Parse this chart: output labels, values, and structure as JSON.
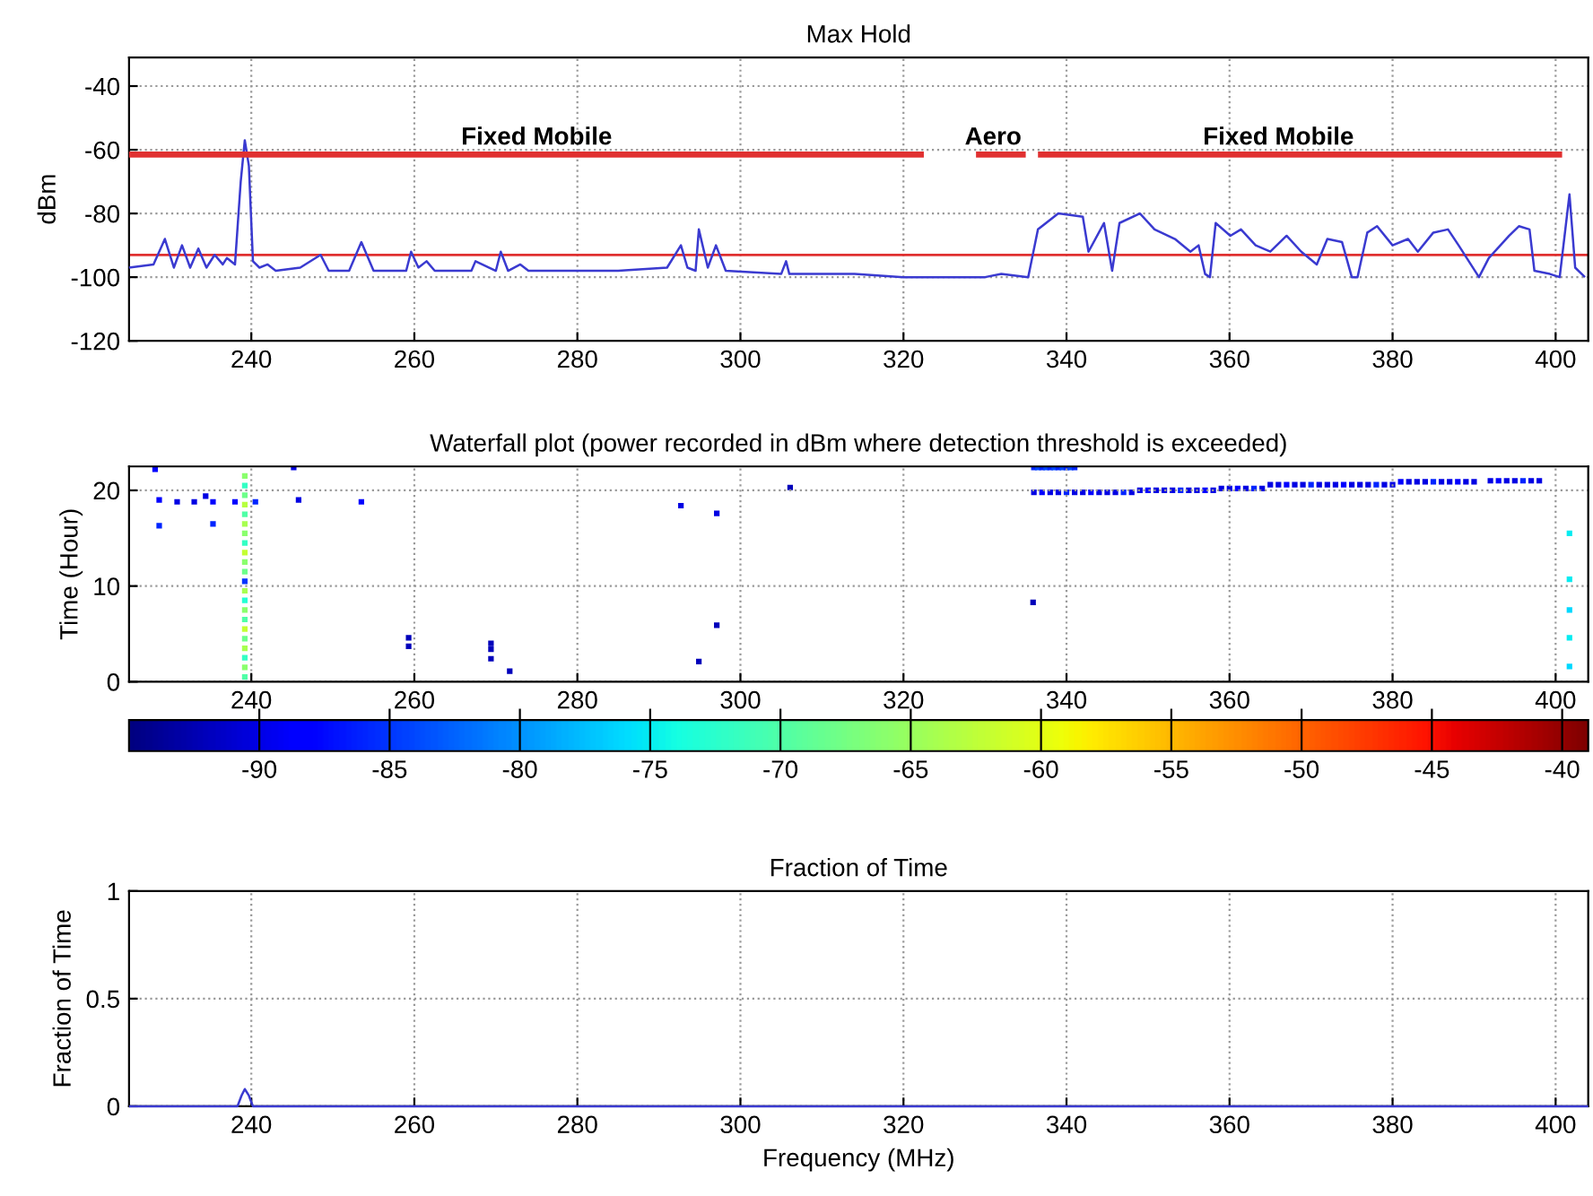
{
  "chart_data": [
    {
      "type": "line",
      "title": "Max Hold",
      "ylabel": "dBm",
      "xlim": [
        225,
        404
      ],
      "xticks": [
        240,
        260,
        280,
        300,
        320,
        340,
        360,
        380,
        400
      ],
      "ylim": [
        -120,
        -31
      ],
      "yticks": [
        -120,
        -100,
        -80,
        -60,
        -40
      ],
      "grid": true,
      "series": [
        {
          "type": "line",
          "color": "#3a3ad0",
          "x": [
            225,
            228,
            229.4,
            230.5,
            231.5,
            232.5,
            233.5,
            234.5,
            235.5,
            236.5,
            237,
            238,
            238.7,
            239.2,
            239.7,
            240.2,
            241,
            242,
            243,
            246,
            248.5,
            249.5,
            252,
            253.5,
            255,
            259,
            259.6,
            260.5,
            261.5,
            262.5,
            267,
            267.5,
            270,
            270.6,
            271.5,
            273,
            274,
            285,
            291,
            292.7,
            293.5,
            294.5,
            294.9,
            296,
            297,
            298.2,
            305,
            305.6,
            306,
            314,
            320,
            330,
            332,
            335.3,
            336.5,
            339,
            342,
            342.7,
            344.6,
            345.6,
            346.5,
            349,
            350.8,
            353.3,
            355.2,
            356.2,
            357,
            357.6,
            358.3,
            360.1,
            361.4,
            363.2,
            365,
            367,
            368.8,
            370.7,
            372,
            373.8,
            375,
            375.7,
            376.9,
            378.1,
            380,
            381.9,
            383.1,
            385,
            386.8,
            388.1,
            390.6,
            391.8,
            394.3,
            395.5,
            396.8,
            397.4,
            399.3,
            400.5,
            401.7,
            402.4,
            403.6
          ],
          "values": [
            -97,
            -96,
            -88,
            -97,
            -90,
            -97,
            -91,
            -97,
            -93,
            -96,
            -94,
            -96,
            -70,
            -57,
            -65,
            -95,
            -97,
            -96,
            -98,
            -97,
            -93,
            -98,
            -98,
            -89,
            -98,
            -98,
            -92,
            -97,
            -95,
            -98,
            -98,
            -95,
            -98,
            -92,
            -98,
            -96,
            -98,
            -98,
            -97,
            -90,
            -97,
            -98,
            -85,
            -97,
            -90,
            -98,
            -99,
            -95,
            -99,
            -99,
            -100,
            -100,
            -99,
            -100,
            -85,
            -80,
            -81,
            -92,
            -83,
            -98,
            -83,
            -80,
            -85,
            -88,
            -92,
            -90,
            -99,
            -100,
            -83,
            -87,
            -85,
            -90,
            -92,
            -87,
            -92,
            -96,
            -88,
            -89,
            -100,
            -100,
            -86,
            -84,
            -90,
            -88,
            -92,
            -86,
            -85,
            -90,
            -100,
            -94,
            -87,
            -84,
            -85,
            -98,
            -99,
            -100,
            -74,
            -97,
            -100
          ]
        },
        {
          "type": "line",
          "color": "#e03030",
          "x": [
            225,
            322.5
          ],
          "values": [
            -61.5,
            -61.5
          ]
        },
        {
          "type": "line",
          "color": "#e03030",
          "x": [
            328.9,
            335
          ],
          "values": [
            -61.5,
            -61.5
          ]
        },
        {
          "type": "line",
          "color": "#e03030",
          "x": [
            336.5,
            400.8
          ],
          "values": [
            -61.5,
            -61.5
          ]
        }
      ],
      "ref_lines": [
        {
          "axis": "y",
          "value": -93,
          "color": "#e03030"
        }
      ],
      "annotations": [
        {
          "text": "Fixed Mobile",
          "x": 275,
          "y": -60
        },
        {
          "text": "Aero",
          "x": 331,
          "y": -60
        },
        {
          "text": "Fixed Mobile",
          "x": 366,
          "y": -60
        }
      ]
    },
    {
      "type": "scatter",
      "title": "Waterfall plot (power recorded in dBm where detection threshold is exceeded)",
      "ylabel": "Time (Hour)",
      "xlim": [
        225,
        404
      ],
      "xticks": [
        240,
        260,
        280,
        300,
        320,
        340,
        360,
        380,
        400
      ],
      "ylim": [
        0,
        22.5
      ],
      "yticks": [
        0,
        10,
        20
      ],
      "grid": true,
      "marker": "square",
      "clim": [
        -95,
        -39
      ],
      "cticks": [
        -90,
        -85,
        -80,
        -75,
        -70,
        -65,
        -60,
        -55,
        -50,
        -45,
        -40
      ],
      "series": [
        {
          "x": [
            228.2,
            228.7,
            228.7,
            230.9,
            233.0,
            234.4,
            235.3,
            235.3,
            238.0,
            240.5,
            245.2,
            245.8,
            253.5,
            259.3,
            259.3,
            269.4,
            269.4,
            269.4,
            271.7,
            292.7,
            294.9,
            297.1,
            297.1,
            306.1,
            335.9,
            401.7,
            401.7,
            401.7,
            401.7,
            401.7,
            239.2,
            239.2,
            239.2,
            239.2,
            239.2,
            239.2,
            239.2,
            239.2,
            239.2,
            239.2,
            239.2,
            239.2,
            239.2,
            239.2,
            239.2,
            239.2,
            239.2,
            239.2,
            239.2,
            239.2,
            239.2,
            239.2,
            336.0,
            336.5,
            337.0,
            337.5,
            338.0,
            338.5,
            339.0,
            339.5,
            340.0,
            340.5,
            341.0,
            336,
            337,
            338,
            339,
            340,
            341,
            342,
            343,
            344,
            345,
            346,
            347,
            348,
            349,
            350,
            351,
            352,
            353,
            354,
            355,
            356,
            357,
            358,
            359,
            360,
            361,
            362,
            363,
            364,
            365,
            366,
            367,
            368,
            369,
            370,
            371,
            372,
            373,
            374,
            375,
            376,
            377,
            378,
            379,
            380,
            381,
            382,
            383,
            384,
            385,
            386,
            387,
            388,
            389,
            390,
            392,
            393,
            394,
            395,
            396,
            397,
            398
          ],
          "values": [
            22.2,
            19.0,
            16.3,
            18.8,
            18.8,
            19.4,
            18.8,
            16.5,
            18.8,
            18.8,
            22.4,
            19.0,
            18.8,
            4.6,
            3.7,
            4.0,
            3.4,
            2.4,
            1.1,
            18.4,
            2.1,
            17.6,
            5.9,
            20.3,
            8.3,
            15.5,
            10.7,
            7.5,
            4.6,
            1.6,
            0.5,
            1.5,
            2.5,
            3.5,
            4.5,
            5.5,
            6.5,
            7.5,
            8.5,
            9.5,
            10.5,
            11.5,
            12.5,
            13.5,
            14.5,
            15.5,
            16.5,
            17.5,
            18.5,
            19.5,
            20.5,
            21.5,
            22.4,
            22.4,
            22.4,
            22.4,
            22.4,
            22.4,
            22.4,
            22.4,
            22.4,
            22.4,
            22.4,
            19.8,
            19.8,
            19.8,
            19.8,
            19.8,
            19.8,
            19.8,
            19.8,
            19.8,
            19.8,
            19.8,
            19.8,
            19.8,
            20.0,
            20.0,
            20.0,
            20.0,
            20.0,
            20.0,
            20.0,
            20.0,
            20.0,
            20.0,
            20.2,
            20.2,
            20.2,
            20.2,
            20.2,
            20.2,
            20.6,
            20.6,
            20.6,
            20.6,
            20.6,
            20.6,
            20.6,
            20.6,
            20.6,
            20.6,
            20.6,
            20.6,
            20.6,
            20.6,
            20.6,
            20.6,
            20.9,
            20.9,
            20.9,
            20.9,
            20.9,
            20.9,
            20.9,
            20.9,
            20.9,
            20.9,
            21.0,
            21.0,
            21.0,
            21.0,
            21.0,
            21.0,
            21.0
          ],
          "cvalues": [
            -88,
            -88,
            -86,
            -90,
            -90,
            -90,
            -88,
            -86,
            -88,
            -86,
            -90,
            -90,
            -88,
            -92,
            -92,
            -92,
            -92,
            -92,
            -92,
            -90,
            -92,
            -90,
            -92,
            -92,
            -92,
            -75,
            -75,
            -76,
            -75,
            -76,
            -70,
            -66,
            -72,
            -64,
            -68,
            -62,
            -70,
            -66,
            -73,
            -64,
            -85,
            -68,
            -66,
            -62,
            -72,
            -66,
            -64,
            -70,
            -63,
            -68,
            -72,
            -66,
            -86,
            -84,
            -86,
            -84,
            -86,
            -84,
            -86,
            -84,
            -86,
            -84,
            -86,
            -90,
            -88,
            -90,
            -90,
            -86,
            -90,
            -90,
            -88,
            -90,
            -90,
            -90,
            -86,
            -90,
            -90,
            -88,
            -90,
            -90,
            -90,
            -86,
            -90,
            -90,
            -88,
            -90,
            -90,
            -90,
            -88,
            -90,
            -86,
            -90,
            -90,
            -90,
            -88,
            -90,
            -90,
            -86,
            -90,
            -90,
            -90,
            -88,
            -90,
            -90,
            -90,
            -86,
            -90,
            -90,
            -88,
            -90,
            -90,
            -90,
            -86,
            -90,
            -90,
            -88,
            -90,
            -90,
            -90,
            -88,
            -90,
            -90,
            -86,
            -90,
            -90
          ]
        }
      ]
    },
    {
      "type": "line",
      "title": "Fraction of Time",
      "xlabel": "Frequency (MHz)",
      "ylabel": "Fraction of Time",
      "xlim": [
        225,
        404
      ],
      "xticks": [
        240,
        260,
        280,
        300,
        320,
        340,
        360,
        380,
        400
      ],
      "ylim": [
        0,
        1
      ],
      "yticks": [
        0,
        0.5,
        1
      ],
      "grid": true,
      "series": [
        {
          "type": "line",
          "color": "#3a3ad0",
          "x": [
            225,
            238.3,
            238.8,
            239.2,
            239.7,
            240.2,
            335,
            400,
            404
          ],
          "values": [
            0,
            0,
            0.05,
            0.08,
            0.05,
            0,
            0,
            0,
            0
          ]
        }
      ]
    }
  ]
}
